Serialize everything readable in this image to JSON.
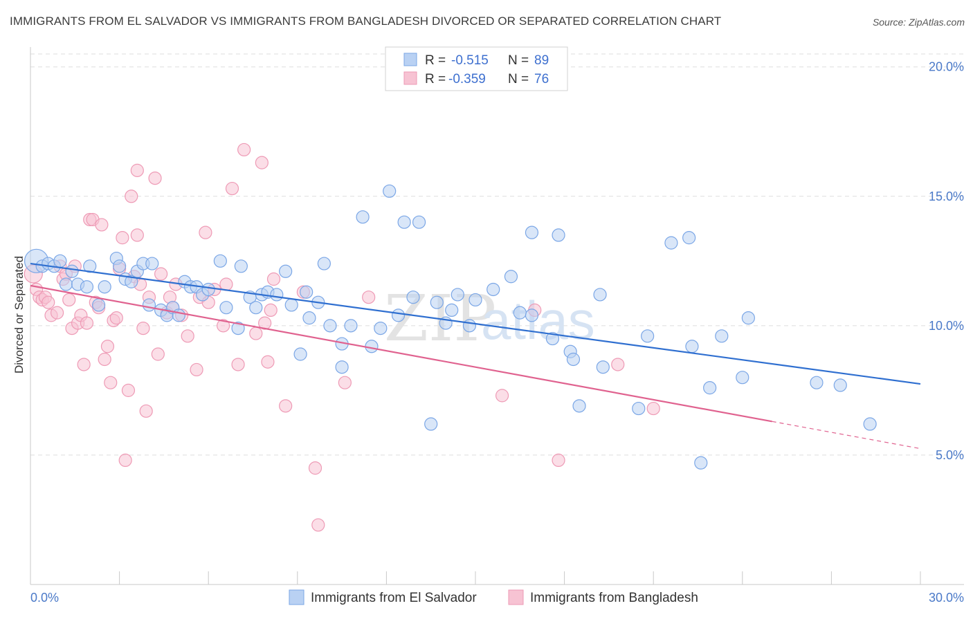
{
  "title": "IMMIGRANTS FROM EL SALVADOR VS IMMIGRANTS FROM BANGLADESH DIVORCED OR SEPARATED CORRELATION CHART",
  "source": "Source: ZipAtlas.com",
  "watermark": {
    "zip": "ZIP",
    "atlas": "atlas"
  },
  "colors": {
    "blue_fill": "#b9d1f3",
    "blue_stroke": "#7aa6e6",
    "blue_line": "#2f6fd0",
    "pink_fill": "#f7c3d3",
    "pink_stroke": "#ee9ab5",
    "pink_line": "#e0628f",
    "grid": "#dddddd",
    "tick_text": "#4a79c8"
  },
  "legend": {
    "rows": [
      {
        "r_label": "R =",
        "r_value": "-0.515",
        "n_label": "N =",
        "n_value": "89"
      },
      {
        "r_label": "R =",
        "r_value": "-0.359",
        "n_label": "N =",
        "n_value": "76"
      }
    ]
  },
  "chart_data": {
    "type": "scatter",
    "title": "IMMIGRANTS FROM EL SALVADOR VS IMMIGRANTS FROM BANGLADESH DIVORCED OR SEPARATED CORRELATION CHART",
    "xlabel": "",
    "ylabel": "Divorced or Separated",
    "xlim": [
      0,
      30
    ],
    "ylim": [
      0,
      20.5
    ],
    "x_tick_labels": [
      "0.0%",
      "30.0%"
    ],
    "y_ticks": [
      5,
      10,
      15,
      20
    ],
    "y_tick_labels": [
      "5.0%",
      "10.0%",
      "15.0%",
      "20.0%"
    ],
    "series": [
      {
        "name": "Immigrants from El Salvador",
        "color": "blue",
        "r": -0.515,
        "n": 89,
        "trend": {
          "x0": 0,
          "y0": 12.4,
          "x1": 30,
          "y1": 7.75
        },
        "points": [
          [
            0.2,
            12.5,
            17
          ],
          [
            0.4,
            12.3,
            9
          ],
          [
            0.6,
            12.4,
            9
          ],
          [
            0.8,
            12.3,
            9
          ],
          [
            1.0,
            12.5,
            9
          ],
          [
            1.2,
            11.6,
            9
          ],
          [
            1.4,
            12.1,
            9
          ],
          [
            1.6,
            11.6,
            9
          ],
          [
            1.9,
            11.5,
            9
          ],
          [
            2.0,
            12.3,
            9
          ],
          [
            2.3,
            10.8,
            9
          ],
          [
            2.5,
            11.5,
            9
          ],
          [
            2.9,
            12.6,
            9
          ],
          [
            3.0,
            12.3,
            9
          ],
          [
            3.2,
            11.8,
            9
          ],
          [
            3.4,
            11.7,
            9
          ],
          [
            3.6,
            12.1,
            9
          ],
          [
            3.8,
            12.4,
            9
          ],
          [
            4.0,
            10.8,
            9
          ],
          [
            4.1,
            12.4,
            9
          ],
          [
            4.4,
            10.6,
            9
          ],
          [
            4.6,
            10.4,
            9
          ],
          [
            4.8,
            10.7,
            9
          ],
          [
            5.0,
            10.4,
            9
          ],
          [
            5.2,
            11.7,
            9
          ],
          [
            5.4,
            11.5,
            9
          ],
          [
            5.6,
            11.5,
            9
          ],
          [
            5.8,
            11.2,
            9
          ],
          [
            6.0,
            11.4,
            9
          ],
          [
            6.4,
            12.5,
            9
          ],
          [
            6.6,
            10.7,
            9
          ],
          [
            7.0,
            9.9,
            9
          ],
          [
            7.1,
            12.3,
            9
          ],
          [
            7.4,
            11.1,
            9
          ],
          [
            7.6,
            10.7,
            9
          ],
          [
            7.8,
            11.2,
            9
          ],
          [
            8.0,
            11.3,
            9
          ],
          [
            8.3,
            11.2,
            9
          ],
          [
            8.6,
            12.1,
            9
          ],
          [
            8.8,
            10.8,
            9
          ],
          [
            9.1,
            8.9,
            9
          ],
          [
            9.3,
            11.3,
            9
          ],
          [
            9.4,
            10.3,
            9
          ],
          [
            9.7,
            10.9,
            9
          ],
          [
            9.9,
            12.4,
            9
          ],
          [
            10.1,
            10.0,
            9
          ],
          [
            10.5,
            9.3,
            9
          ],
          [
            10.5,
            8.4,
            9
          ],
          [
            10.8,
            10.0,
            9
          ],
          [
            11.2,
            14.2,
            9
          ],
          [
            11.5,
            9.2,
            9
          ],
          [
            11.8,
            9.9,
            9
          ],
          [
            12.1,
            15.2,
            9
          ],
          [
            12.4,
            10.4,
            9
          ],
          [
            12.6,
            14.0,
            9
          ],
          [
            12.9,
            11.1,
            9
          ],
          [
            13.1,
            14.0,
            9
          ],
          [
            13.5,
            6.2,
            9
          ],
          [
            13.7,
            10.9,
            9
          ],
          [
            14.0,
            10.1,
            9
          ],
          [
            14.2,
            10.6,
            9
          ],
          [
            14.4,
            11.2,
            9
          ],
          [
            14.8,
            10.0,
            9
          ],
          [
            15.0,
            11.0,
            9
          ],
          [
            15.6,
            11.4,
            9
          ],
          [
            16.2,
            11.9,
            9
          ],
          [
            16.5,
            10.5,
            9
          ],
          [
            16.9,
            13.6,
            9
          ],
          [
            16.9,
            10.4,
            9
          ],
          [
            17.6,
            9.5,
            9
          ],
          [
            17.8,
            13.5,
            9
          ],
          [
            18.2,
            9.0,
            9
          ],
          [
            18.3,
            8.7,
            9
          ],
          [
            18.5,
            6.9,
            9
          ],
          [
            19.2,
            11.2,
            9
          ],
          [
            19.3,
            8.4,
            9
          ],
          [
            20.5,
            6.8,
            9
          ],
          [
            20.8,
            9.6,
            9
          ],
          [
            21.6,
            13.2,
            9
          ],
          [
            22.2,
            13.4,
            9
          ],
          [
            22.3,
            9.2,
            9
          ],
          [
            22.6,
            4.7,
            9
          ],
          [
            22.9,
            7.6,
            9
          ],
          [
            23.3,
            9.6,
            9
          ],
          [
            24.0,
            8.0,
            9
          ],
          [
            24.2,
            10.3,
            9
          ],
          [
            26.5,
            7.8,
            9
          ],
          [
            27.3,
            7.7,
            9
          ],
          [
            28.3,
            6.2,
            9
          ]
        ]
      },
      {
        "name": "Immigrants from Bangladesh",
        "color": "pink",
        "r": -0.359,
        "n": 76,
        "trend": {
          "x0": 0,
          "y0": 11.55,
          "x1": 25.0,
          "y1": 6.3,
          "dash_x1": 30,
          "dash_y1": 5.25
        },
        "points": [
          [
            0.1,
            12.0,
            13
          ],
          [
            0.2,
            11.4,
            9
          ],
          [
            0.3,
            11.1,
            9
          ],
          [
            0.4,
            11.0,
            9
          ],
          [
            0.5,
            11.1,
            9
          ],
          [
            0.6,
            10.9,
            9
          ],
          [
            0.7,
            10.4,
            9
          ],
          [
            0.9,
            10.5,
            9
          ],
          [
            1.0,
            12.3,
            9
          ],
          [
            1.1,
            11.8,
            9
          ],
          [
            1.2,
            12.0,
            9
          ],
          [
            1.3,
            11.0,
            9
          ],
          [
            1.4,
            9.9,
            9
          ],
          [
            1.5,
            12.3,
            9
          ],
          [
            1.6,
            10.1,
            9
          ],
          [
            1.7,
            10.4,
            9
          ],
          [
            1.8,
            8.5,
            9
          ],
          [
            1.9,
            10.1,
            9
          ],
          [
            2.0,
            14.1,
            9
          ],
          [
            2.1,
            14.1,
            9
          ],
          [
            2.2,
            10.9,
            9
          ],
          [
            2.3,
            10.7,
            9
          ],
          [
            2.4,
            13.9,
            9
          ],
          [
            2.5,
            8.7,
            9
          ],
          [
            2.6,
            9.2,
            9
          ],
          [
            2.7,
            7.8,
            9
          ],
          [
            2.8,
            10.2,
            9
          ],
          [
            2.9,
            10.3,
            9
          ],
          [
            3.0,
            12.2,
            9
          ],
          [
            3.1,
            13.4,
            9
          ],
          [
            3.2,
            4.8,
            9
          ],
          [
            3.3,
            7.5,
            9
          ],
          [
            3.4,
            15.0,
            9
          ],
          [
            3.5,
            11.9,
            9
          ],
          [
            3.6,
            16.0,
            9
          ],
          [
            3.6,
            13.5,
            9
          ],
          [
            3.7,
            11.6,
            9
          ],
          [
            3.8,
            9.9,
            9
          ],
          [
            3.9,
            6.7,
            9
          ],
          [
            4.0,
            11.1,
            9
          ],
          [
            4.2,
            15.7,
            9
          ],
          [
            4.3,
            8.9,
            9
          ],
          [
            4.4,
            12.0,
            9
          ],
          [
            4.6,
            10.5,
            9
          ],
          [
            4.7,
            11.1,
            9
          ],
          [
            4.8,
            10.7,
            9
          ],
          [
            4.9,
            11.6,
            9
          ],
          [
            5.1,
            10.4,
            9
          ],
          [
            5.3,
            9.6,
            9
          ],
          [
            5.6,
            8.3,
            9
          ],
          [
            5.7,
            11.1,
            9
          ],
          [
            5.9,
            13.6,
            9
          ],
          [
            6.0,
            10.9,
            9
          ],
          [
            6.2,
            11.4,
            9
          ],
          [
            6.5,
            10.0,
            9
          ],
          [
            6.6,
            11.6,
            9
          ],
          [
            6.8,
            15.3,
            9
          ],
          [
            7.0,
            8.5,
            9
          ],
          [
            7.2,
            16.8,
            9
          ],
          [
            7.6,
            9.7,
            9
          ],
          [
            7.8,
            16.3,
            9
          ],
          [
            7.9,
            10.1,
            9
          ],
          [
            8.0,
            8.6,
            9
          ],
          [
            8.1,
            10.6,
            9
          ],
          [
            8.2,
            11.8,
            9
          ],
          [
            8.6,
            6.9,
            9
          ],
          [
            9.2,
            11.3,
            9
          ],
          [
            9.6,
            4.5,
            9
          ],
          [
            9.7,
            2.3,
            9
          ],
          [
            10.6,
            7.8,
            9
          ],
          [
            11.4,
            11.1,
            9
          ],
          [
            15.9,
            7.3,
            9
          ],
          [
            17.0,
            10.6,
            9
          ],
          [
            17.8,
            4.8,
            9
          ],
          [
            19.8,
            8.5,
            9
          ],
          [
            21.0,
            6.8,
            9
          ]
        ]
      }
    ]
  },
  "bottom_legend": [
    {
      "label": "Immigrants from El Salvador"
    },
    {
      "label": "Immigrants from Bangladesh"
    }
  ]
}
